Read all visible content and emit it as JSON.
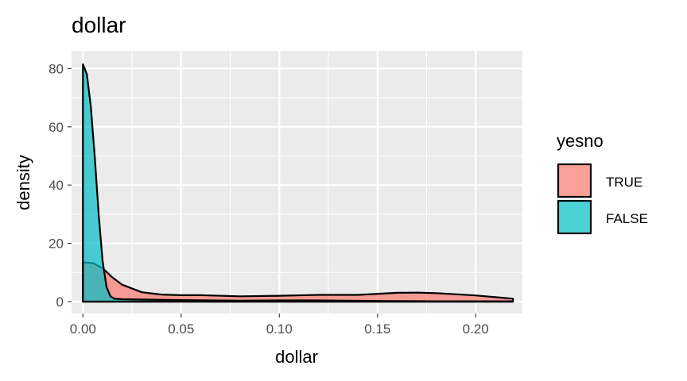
{
  "chart_data": {
    "type": "area",
    "title": "dollar",
    "xlabel": "dollar",
    "ylabel": "density",
    "xlim": [
      -0.0058,
      0.2238
    ],
    "ylim": [
      -4.1,
      86.1
    ],
    "x_ticks": [
      {
        "value": 0.0,
        "label": "0.00"
      },
      {
        "value": 0.05,
        "label": "0.05"
      },
      {
        "value": 0.1,
        "label": "0.10"
      },
      {
        "value": 0.15,
        "label": "0.15"
      },
      {
        "value": 0.2,
        "label": "0.20"
      }
    ],
    "x_minor_ticks": [
      0.025,
      0.075,
      0.125,
      0.175
    ],
    "y_ticks": [
      {
        "value": 0,
        "label": "0"
      },
      {
        "value": 20,
        "label": "20"
      },
      {
        "value": 40,
        "label": "40"
      },
      {
        "value": 60,
        "label": "60"
      },
      {
        "value": 80,
        "label": "80"
      }
    ],
    "y_minor_ticks": [
      10,
      30,
      50,
      70
    ],
    "grid": true,
    "legend": {
      "title": "yesno",
      "position": "right"
    },
    "series": [
      {
        "name": "TRUE",
        "color": "#F8766D",
        "x": [
          0.0,
          0.005,
          0.01,
          0.015,
          0.02,
          0.03,
          0.04,
          0.05,
          0.06,
          0.08,
          0.1,
          0.12,
          0.14,
          0.16,
          0.17,
          0.18,
          0.2,
          0.219
        ],
        "y": [
          13.5,
          13.2,
          11.5,
          8.3,
          5.8,
          3.2,
          2.4,
          2.2,
          2.2,
          1.8,
          2.0,
          2.3,
          2.3,
          3.0,
          3.1,
          2.9,
          2.1,
          1.0
        ]
      },
      {
        "name": "FALSE",
        "color": "#00BFC4",
        "x": [
          0.0,
          0.002,
          0.004,
          0.006,
          0.008,
          0.01,
          0.012,
          0.014,
          0.016,
          0.02,
          0.03,
          0.05,
          0.08,
          0.1,
          0.12,
          0.15,
          0.18,
          0.219
        ],
        "y": [
          81.5,
          78.0,
          67.0,
          50.0,
          30.0,
          14.0,
          5.0,
          1.8,
          1.0,
          0.8,
          0.7,
          0.5,
          0.3,
          0.4,
          0.4,
          0.2,
          0.1,
          0.1
        ]
      }
    ]
  },
  "colors": {
    "panel_background": "#EBEBEB",
    "grid_line": "#FFFFFF",
    "outline": "#000000",
    "fill_opacity": 0.7
  }
}
